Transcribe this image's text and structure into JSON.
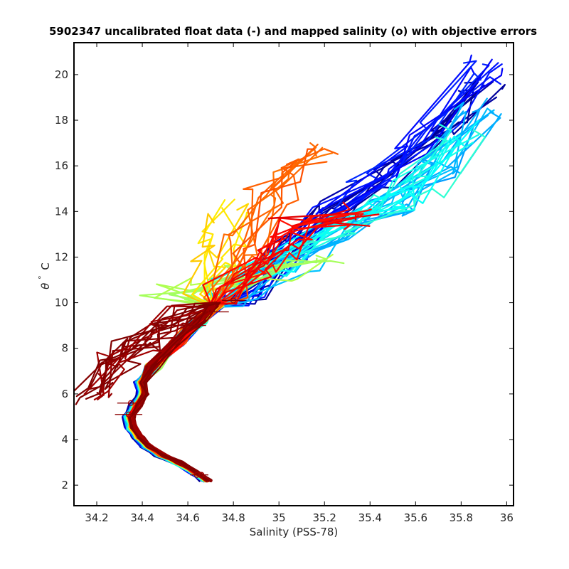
{
  "chart_data": {
    "type": "line",
    "title": "5902347 uncalibrated float data (-) and mapped salinity (o) with objective errors",
    "xlabel": "Salinity (PSS-78)",
    "ylabel_symbol": "θ",
    "ylabel_unit": "C",
    "xlim": [
      34.1,
      36.03
    ],
    "ylim": [
      1.1,
      21.4
    ],
    "xticks": [
      34.2,
      34.4,
      34.6,
      34.8,
      35,
      35.2,
      35.4,
      35.6,
      35.8,
      36
    ],
    "xtick_labels": [
      "34.2",
      "34.4",
      "34.6",
      "34.8",
      "35",
      "35.2",
      "35.4",
      "35.6",
      "35.8",
      "36"
    ],
    "yticks": [
      2,
      4,
      6,
      8,
      10,
      12,
      14,
      16,
      18,
      20
    ],
    "ytick_labels": [
      "2",
      "4",
      "6",
      "8",
      "10",
      "12",
      "14",
      "16",
      "18",
      "20"
    ],
    "grid": false,
    "legend": "none",
    "colormap": "jet",
    "colormap_stops": [
      "#00008f",
      "#0000ff",
      "#0080ff",
      "#00ffff",
      "#80ff80",
      "#ffff00",
      "#ff8000",
      "#ff0000",
      "#800000"
    ],
    "deep_branch": {
      "S": [
        34.68,
        34.62,
        34.55,
        34.48,
        34.42,
        34.38,
        34.35,
        34.34,
        34.37,
        34.4,
        34.39
      ],
      "T": [
        2.2,
        2.6,
        3.0,
        3.3,
        3.7,
        4.1,
        4.5,
        5.0,
        5.5,
        6.0,
        6.5
      ]
    },
    "series_groups": [
      {
        "color_index": 0.02,
        "count": 8,
        "upper_S": [
          34.85,
          35.05,
          35.22,
          35.45,
          35.7,
          35.9
        ],
        "upper_T": [
          10.3,
          12.5,
          14.0,
          15.5,
          17.5,
          19.5
        ]
      },
      {
        "color_index": 0.14,
        "count": 10,
        "upper_S": [
          34.85,
          35.0,
          35.2,
          35.4,
          35.65,
          35.92
        ],
        "upper_T": [
          10.2,
          12.0,
          13.8,
          15.2,
          17.2,
          20.2
        ]
      },
      {
        "color_index": 0.3,
        "count": 12,
        "upper_S": [
          34.8,
          35.05,
          35.3,
          35.5,
          35.7,
          35.9
        ],
        "upper_T": [
          10.3,
          11.8,
          13.2,
          14.4,
          16.0,
          18.5
        ]
      },
      {
        "color_index": 0.4,
        "count": 10,
        "upper_S": [
          34.75,
          35.0,
          35.3,
          35.5,
          35.6,
          35.82
        ],
        "upper_T": [
          10.5,
          11.8,
          13.5,
          14.5,
          15.2,
          17.5
        ]
      },
      {
        "color_index": 0.55,
        "count": 6,
        "upper_S": [
          34.5,
          34.7,
          34.85,
          35.0,
          35.2
        ],
        "upper_T": [
          10.6,
          10.8,
          11.0,
          11.4,
          12.0
        ]
      },
      {
        "color_index": 0.66,
        "count": 6,
        "upper_S": [
          34.65,
          34.72,
          34.75,
          34.8
        ],
        "upper_T": [
          10.8,
          11.8,
          12.8,
          14.2
        ]
      },
      {
        "color_index": 0.78,
        "count": 10,
        "upper_S": [
          34.78,
          34.85,
          34.95,
          35.05,
          35.15
        ],
        "upper_T": [
          10.6,
          12.5,
          14.5,
          15.5,
          16.5
        ]
      },
      {
        "color_index": 0.88,
        "count": 10,
        "upper_S": [
          34.75,
          34.9,
          35.0,
          35.1,
          35.35
        ],
        "upper_T": [
          10.3,
          11.5,
          12.5,
          13.5,
          13.6
        ]
      },
      {
        "color_index": 0.99,
        "count": 14,
        "upper_S": [
          34.6,
          34.5,
          34.4,
          34.3,
          34.2
        ],
        "upper_T": [
          9.5,
          8.8,
          8.3,
          7.6,
          6.3
        ]
      }
    ],
    "mapped_salinity_points": [
      {
        "S": 34.66,
        "T": 2.45,
        "err": 0.03
      },
      {
        "S": 34.64,
        "T": 2.45,
        "err": 0.03
      },
      {
        "S": 34.34,
        "T": 5.1,
        "err": 0.06
      },
      {
        "S": 34.35,
        "T": 5.6,
        "err": 0.06
      },
      {
        "S": 34.58,
        "T": 9.0,
        "err": 0.1
      },
      {
        "S": 34.7,
        "T": 9.6,
        "err": 0.08
      },
      {
        "S": 34.8,
        "T": 10.1,
        "err": 0.05
      }
    ]
  }
}
